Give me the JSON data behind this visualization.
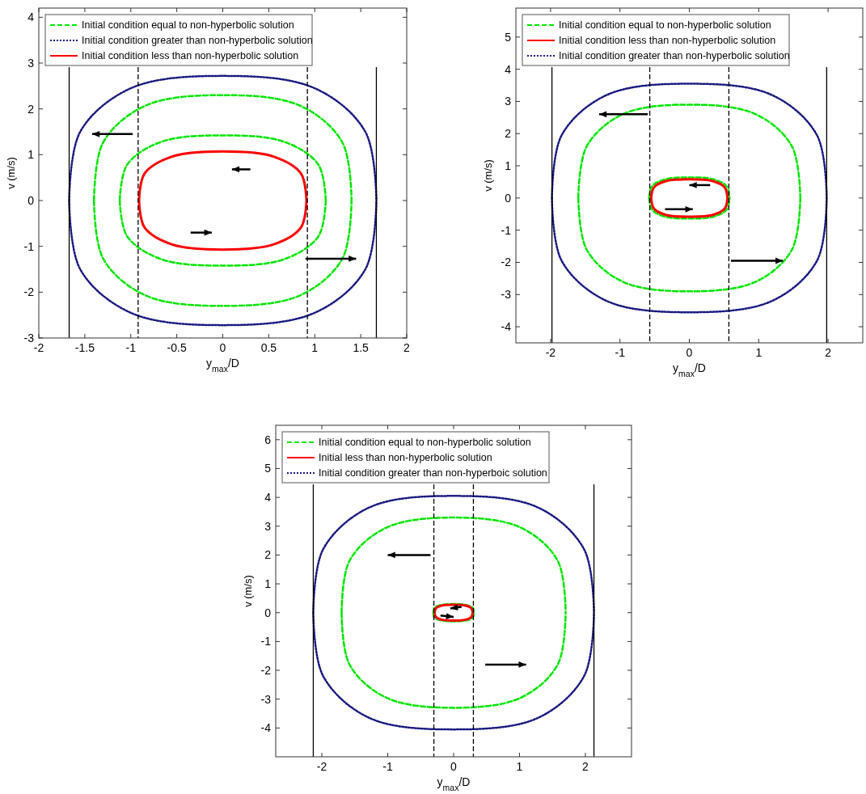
{
  "chart_data": [
    {
      "type": "line",
      "xlabel": "y$_{max}$/D",
      "ylabel": "v (m/s)",
      "xlim": [
        -2,
        2
      ],
      "ylim": [
        -3,
        4.2
      ],
      "xticks": [
        -2,
        -1.5,
        -1,
        -0.5,
        0,
        0.5,
        1,
        1.5,
        2
      ],
      "yticks": [
        -3,
        -2,
        -1,
        0,
        1,
        2,
        3,
        4
      ],
      "grid": false,
      "legend": "top left",
      "marker": "none",
      "series": [
        {
          "name": "Initial condition equal to non-hyperbolic solution",
          "color": "#00e600",
          "line_style": "dashed",
          "x": [
            -1.4,
            -1.3,
            -0.84,
            0,
            0.84,
            1.3,
            1.4,
            null,
            -1.4,
            -1.3,
            -0.84,
            0,
            0.84,
            1.3,
            1.4,
            null,
            -1.12,
            -1.04,
            -0.67,
            0,
            0.67,
            1.04,
            1.12,
            null,
            -1.12,
            -1.04,
            -0.67,
            0,
            0.67,
            1.04,
            1.12
          ],
          "values": [
            0,
            1.27,
            2.07,
            2.3,
            2.07,
            1.27,
            0,
            null,
            0,
            -1.27,
            -2.07,
            -2.3,
            -2.07,
            -1.27,
            0,
            null,
            0,
            0.78,
            1.28,
            1.42,
            1.28,
            0.78,
            0,
            null,
            0,
            -0.78,
            -1.28,
            -1.42,
            -1.28,
            -0.78,
            0
          ]
        },
        {
          "name": "Initial condition greater than non-hyperbolic solution",
          "color": "#1a1a80",
          "line_style": "dotted",
          "x": [
            -1.67,
            -1.55,
            -1,
            0,
            1,
            1.55,
            1.67,
            null,
            -1.67,
            -1.55,
            -1,
            0,
            1,
            1.55,
            1.67
          ],
          "values": [
            0,
            1.5,
            2.45,
            2.72,
            2.45,
            1.5,
            0,
            null,
            0,
            -1.5,
            -2.45,
            -2.72,
            -2.45,
            -1.5,
            0
          ]
        },
        {
          "name": "Initial condition less than non-hyperbolic solution",
          "color": "#ff0000",
          "line_style": "solid",
          "x": [
            -0.91,
            -0.85,
            -0.55,
            0,
            0.55,
            0.85,
            0.91,
            null,
            -0.91,
            -0.85,
            -0.55,
            0,
            0.55,
            0.85,
            0.91
          ],
          "values": [
            0,
            0.59,
            0.96,
            1.07,
            0.96,
            0.59,
            0,
            null,
            0,
            -0.59,
            -0.96,
            -1.07,
            -0.96,
            -0.59,
            0
          ]
        }
      ],
      "ref_lines": [
        {
          "axis": "x",
          "value": -1.67,
          "line_style": "solid",
          "color": "#000000"
        },
        {
          "axis": "x",
          "value": 1.67,
          "line_style": "solid",
          "color": "#000000"
        },
        {
          "axis": "x",
          "value": -0.92,
          "line_style": "dashed",
          "color": "#000000"
        },
        {
          "axis": "x",
          "value": 0.92,
          "line_style": "dashed",
          "color": "#000000"
        }
      ]
    },
    {
      "type": "line",
      "xlabel": "y$_{max}$/D",
      "ylabel": "v (m/s)",
      "xlim": [
        -2.5,
        2.5
      ],
      "ylim": [
        -4.5,
        5.9
      ],
      "xticks": [
        -2,
        -1,
        0,
        1,
        2
      ],
      "yticks": [
        -4,
        -3,
        -2,
        -1,
        0,
        1,
        2,
        3,
        4,
        5
      ],
      "grid": false,
      "legend": "top left",
      "marker": "none",
      "series": [
        {
          "name": "Initial condition equal to non-hyperbolic solution",
          "color": "#00e600",
          "line_style": "dashed",
          "x": [
            -1.6,
            -1.48,
            -0.96,
            0,
            0.96,
            1.48,
            1.6,
            null,
            -1.6,
            -1.48,
            -0.96,
            0,
            0.96,
            1.48,
            1.6,
            null,
            -0.58,
            -0.54,
            -0.35,
            0,
            0.35,
            0.54,
            0.58,
            null,
            -0.58,
            -0.54,
            -0.35,
            0,
            0.35,
            0.54,
            0.58
          ],
          "values": [
            0,
            1.6,
            2.6,
            2.9,
            2.6,
            1.6,
            0,
            null,
            0,
            -1.6,
            -2.6,
            -2.9,
            -2.6,
            -1.6,
            0,
            null,
            0,
            0.36,
            0.58,
            0.64,
            0.58,
            0.36,
            0,
            null,
            0,
            -0.36,
            -0.58,
            -0.64,
            -0.58,
            -0.36,
            0
          ]
        },
        {
          "name": "Initial condition less than non-hyperbolic solution",
          "color": "#ff0000",
          "line_style": "solid",
          "x": [
            -0.55,
            -0.51,
            -0.33,
            0,
            0.33,
            0.51,
            0.55,
            null,
            -0.55,
            -0.51,
            -0.33,
            0,
            0.33,
            0.51,
            0.55
          ],
          "values": [
            0,
            0.33,
            0.53,
            0.58,
            0.53,
            0.33,
            0,
            null,
            0,
            -0.33,
            -0.53,
            -0.58,
            -0.53,
            -0.33,
            0
          ]
        },
        {
          "name": "Initial condition greater than non-hyperbolic solution",
          "color": "#1a1a80",
          "line_style": "dotted",
          "x": [
            -1.98,
            -1.84,
            -1.19,
            0,
            1.19,
            1.84,
            1.98,
            null,
            -1.98,
            -1.84,
            -1.19,
            0,
            1.19,
            1.84,
            1.98
          ],
          "values": [
            0,
            1.95,
            3.2,
            3.55,
            3.2,
            1.95,
            0,
            null,
            0,
            -1.95,
            -3.2,
            -3.55,
            -3.2,
            -1.95,
            0
          ]
        }
      ],
      "ref_lines": [
        {
          "axis": "x",
          "value": -1.98,
          "line_style": "solid",
          "color": "#000000"
        },
        {
          "axis": "x",
          "value": 1.98,
          "line_style": "solid",
          "color": "#000000"
        },
        {
          "axis": "x",
          "value": -0.57,
          "line_style": "dashed",
          "color": "#000000"
        },
        {
          "axis": "x",
          "value": 0.57,
          "line_style": "dashed",
          "color": "#000000"
        }
      ]
    },
    {
      "type": "line",
      "xlabel": "y$_{max}$/D",
      "ylabel": "v (m/s)",
      "xlim": [
        -2.7,
        2.7
      ],
      "ylim": [
        -5,
        6.5
      ],
      "xticks": [
        -2,
        -1,
        0,
        1,
        2
      ],
      "yticks": [
        -4,
        -3,
        -2,
        -1,
        0,
        1,
        2,
        3,
        4,
        5,
        6
      ],
      "grid": false,
      "legend": "top left",
      "marker": "none",
      "series": [
        {
          "name": "Initial condition equal to non-hyperbolic solution",
          "color": "#00e600",
          "line_style": "dashed",
          "x": [
            -1.7,
            -1.58,
            -1.02,
            0,
            1.02,
            1.58,
            1.7,
            null,
            -1.7,
            -1.58,
            -1.02,
            0,
            1.02,
            1.58,
            1.7,
            null,
            -0.31,
            -0.29,
            -0.19,
            0,
            0.19,
            0.29,
            0.31,
            null,
            -0.31,
            -0.29,
            -0.19,
            0,
            0.19,
            0.29,
            0.31
          ],
          "values": [
            0,
            1.8,
            2.95,
            3.3,
            2.95,
            1.8,
            0,
            null,
            0,
            -1.8,
            -2.95,
            -3.3,
            -2.95,
            -1.8,
            0,
            null,
            0,
            0.17,
            0.27,
            0.3,
            0.27,
            0.17,
            0,
            null,
            0,
            -0.17,
            -0.27,
            -0.3,
            -0.27,
            -0.17,
            0
          ]
        },
        {
          "name": "Initial less than non-hyperbolic solution",
          "color": "#ff0000",
          "line_style": "solid",
          "x": [
            -0.29,
            -0.27,
            -0.17,
            0,
            0.17,
            0.27,
            0.29,
            null,
            -0.29,
            -0.27,
            -0.17,
            0,
            0.17,
            0.27,
            0.29
          ],
          "values": [
            0,
            0.15,
            0.25,
            0.27,
            0.25,
            0.15,
            0,
            null,
            0,
            -0.15,
            -0.25,
            -0.27,
            -0.25,
            -0.15,
            0
          ]
        },
        {
          "name": "Initial condition greater than non-hyperboic solution",
          "color": "#1a1a80",
          "line_style": "dotted",
          "x": [
            -2.13,
            -1.98,
            -1.28,
            0,
            1.28,
            1.98,
            2.13,
            null,
            -2.13,
            -1.98,
            -1.28,
            0,
            1.28,
            1.98,
            2.13
          ],
          "values": [
            0,
            2.2,
            3.65,
            4.05,
            3.65,
            2.2,
            0,
            null,
            0,
            -2.2,
            -3.65,
            -4.05,
            -3.65,
            -2.2,
            0
          ]
        }
      ],
      "ref_lines": [
        {
          "axis": "x",
          "value": -2.13,
          "line_style": "solid",
          "color": "#000000"
        },
        {
          "axis": "x",
          "value": 2.13,
          "line_style": "solid",
          "color": "#000000"
        },
        {
          "axis": "x",
          "value": -0.3,
          "line_style": "dashed",
          "color": "#000000"
        },
        {
          "axis": "x",
          "value": 0.3,
          "line_style": "dashed",
          "color": "#000000"
        }
      ]
    }
  ]
}
